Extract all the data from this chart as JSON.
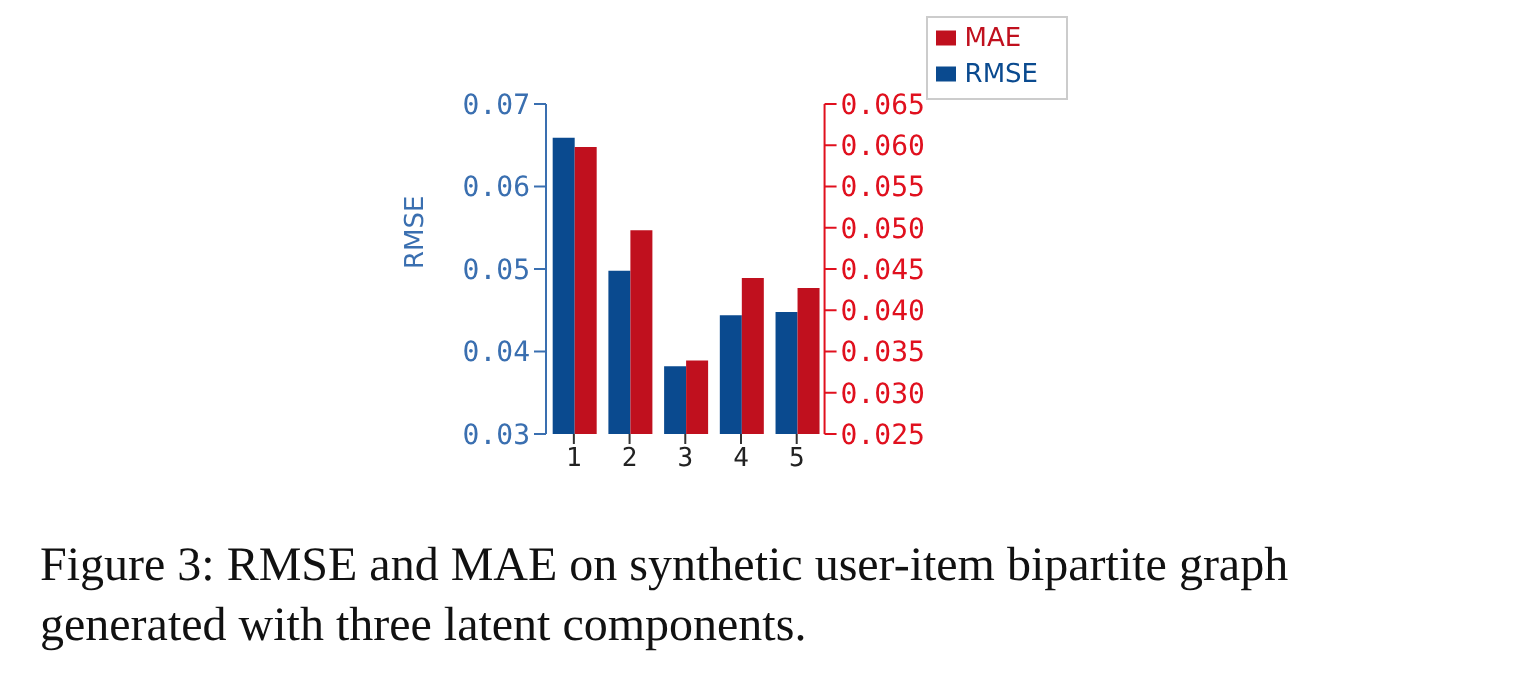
{
  "chart_data": {
    "type": "bar",
    "categories": [
      "1",
      "2",
      "3",
      "4",
      "5"
    ],
    "series": [
      {
        "name": "RMSE",
        "color": "#0a4a8f",
        "values": [
          0.0659,
          0.0498,
          0.0382,
          0.0444,
          0.0448
        ]
      },
      {
        "name": "MAE",
        "color": "#c0101e",
        "values": [
          0.0598,
          0.0497,
          0.0339,
          0.0439,
          0.0427
        ],
        "axis": "y2"
      }
    ],
    "ylabel": "RMSE",
    "ylim": [
      0.03,
      0.07
    ],
    "yticks": [
      0.03,
      0.04,
      0.05,
      0.06,
      0.07
    ],
    "y2lim": [
      0.025,
      0.065
    ],
    "y2ticks": [
      0.025,
      {
        "value": 0.03,
        "label": "0.030"
      },
      0.035,
      {
        "value": 0.04,
        "label": "0.040"
      },
      0.045,
      {
        "value": 0.05,
        "label": "0.050"
      },
      0.055,
      {
        "value": 0.06,
        "label": "0.060"
      },
      0.065
    ],
    "legend": "top right",
    "grid": false,
    "annotations": [
      "Figure 3: RMSE and MAE on synthetic user-item bipartite graph generated with three latent components."
    ]
  }
}
